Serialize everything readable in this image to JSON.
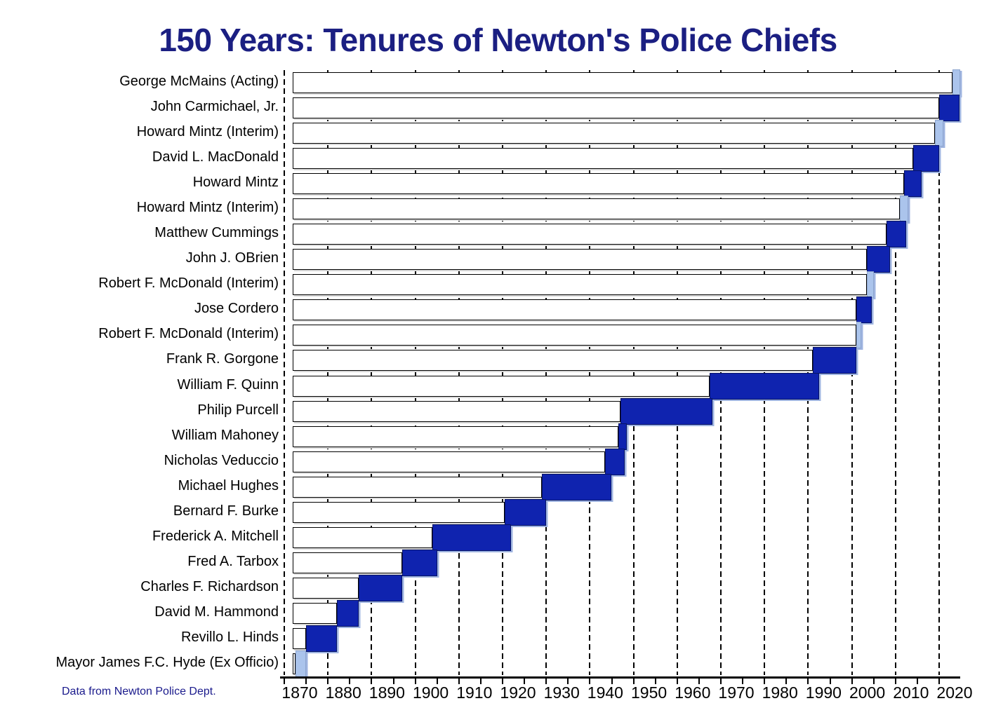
{
  "title": "150 Years: Tenures of Newton's Police Chiefs",
  "source_note": "Data from Newton Police Dept.",
  "colors": {
    "title_text": "#1b1f82",
    "source_note_text": "#1a1a8c",
    "chief_bar": "#0f23af",
    "acting_interim_bar": "#abc4ec",
    "axis_and_grid": "#000000",
    "offset_bar_fill": "#ffffff"
  },
  "chart_data": {
    "type": "bar",
    "subtype": "horizontal-gantt-timeline",
    "title": "150 Years: Tenures of Newton's Police Chiefs",
    "xlabel": "",
    "ylabel": "",
    "xlim": [
      1872,
      2025
    ],
    "x_tick_labels": [
      1870,
      1880,
      1890,
      1900,
      1910,
      1920,
      1930,
      1940,
      1950,
      1960,
      1970,
      1980,
      1990,
      2000,
      2010,
      2020
    ],
    "minor_tick_step_years": 5,
    "grid": "vertical-dashed-on-decades",
    "legend": "none",
    "bar_kinds": {
      "chief": "dark blue bar (permanent chief)",
      "acting": "light blue bar (acting / interim / ex officio)"
    },
    "rows_top_to_bottom": [
      {
        "label": "George McMains (Acting)",
        "start": 2023,
        "end": 2024.8,
        "kind": "acting"
      },
      {
        "label": "John Carmichael, Jr.",
        "start": 2020,
        "end": 2024.6,
        "kind": "chief"
      },
      {
        "label": "Howard Mintz (Interim)",
        "start": 2019,
        "end": 2021,
        "kind": "acting"
      },
      {
        "label": "David L. MacDonald",
        "start": 2014,
        "end": 2020,
        "kind": "chief"
      },
      {
        "label": "Howard Mintz",
        "start": 2012,
        "end": 2016,
        "kind": "chief"
      },
      {
        "label": "Howard Mintz (Interim)",
        "start": 2011,
        "end": 2013,
        "kind": "acting"
      },
      {
        "label": "Matthew Cummings",
        "start": 2008,
        "end": 2012.5,
        "kind": "chief"
      },
      {
        "label": "John J. OBrien",
        "start": 2003.5,
        "end": 2008.8,
        "kind": "chief"
      },
      {
        "label": "Robert F. McDonald (Interim)",
        "start": 2003.5,
        "end": 2005,
        "kind": "acting"
      },
      {
        "label": "Jose Cordero",
        "start": 2001,
        "end": 2004.5,
        "kind": "chief"
      },
      {
        "label": "Robert F. McDonald (Interim)",
        "start": 2001,
        "end": 2002.2,
        "kind": "acting"
      },
      {
        "label": "Frank R. Gorgone",
        "start": 1991,
        "end": 2001,
        "kind": "chief"
      },
      {
        "label": "William F. Quinn",
        "start": 1967.5,
        "end": 1992.5,
        "kind": "chief"
      },
      {
        "label": "Philip Purcell",
        "start": 1947,
        "end": 1968,
        "kind": "chief"
      },
      {
        "label": "William  Mahoney",
        "start": 1946.5,
        "end": 1948.5,
        "kind": "chief"
      },
      {
        "label": "Nicholas Veduccio",
        "start": 1943.5,
        "end": 1948,
        "kind": "chief"
      },
      {
        "label": "Michael Hughes",
        "start": 1929,
        "end": 1945,
        "kind": "chief"
      },
      {
        "label": "Bernard F. Burke",
        "start": 1920.5,
        "end": 1930,
        "kind": "chief"
      },
      {
        "label": "Frederick A. Mitchell",
        "start": 1904,
        "end": 1922,
        "kind": "chief"
      },
      {
        "label": "Fred A. Tarbox",
        "start": 1897,
        "end": 1905,
        "kind": "chief"
      },
      {
        "label": "Charles F. Richardson",
        "start": 1887,
        "end": 1897,
        "kind": "chief"
      },
      {
        "label": "David M. Hammond",
        "start": 1882,
        "end": 1887,
        "kind": "chief"
      },
      {
        "label": "Revillo L. Hinds",
        "start": 1875,
        "end": 1882,
        "kind": "chief"
      },
      {
        "label": "Mayor James F.C. Hyde (Ex Officio)",
        "start": 1872.5,
        "end": 1875,
        "kind": "acting"
      }
    ]
  }
}
